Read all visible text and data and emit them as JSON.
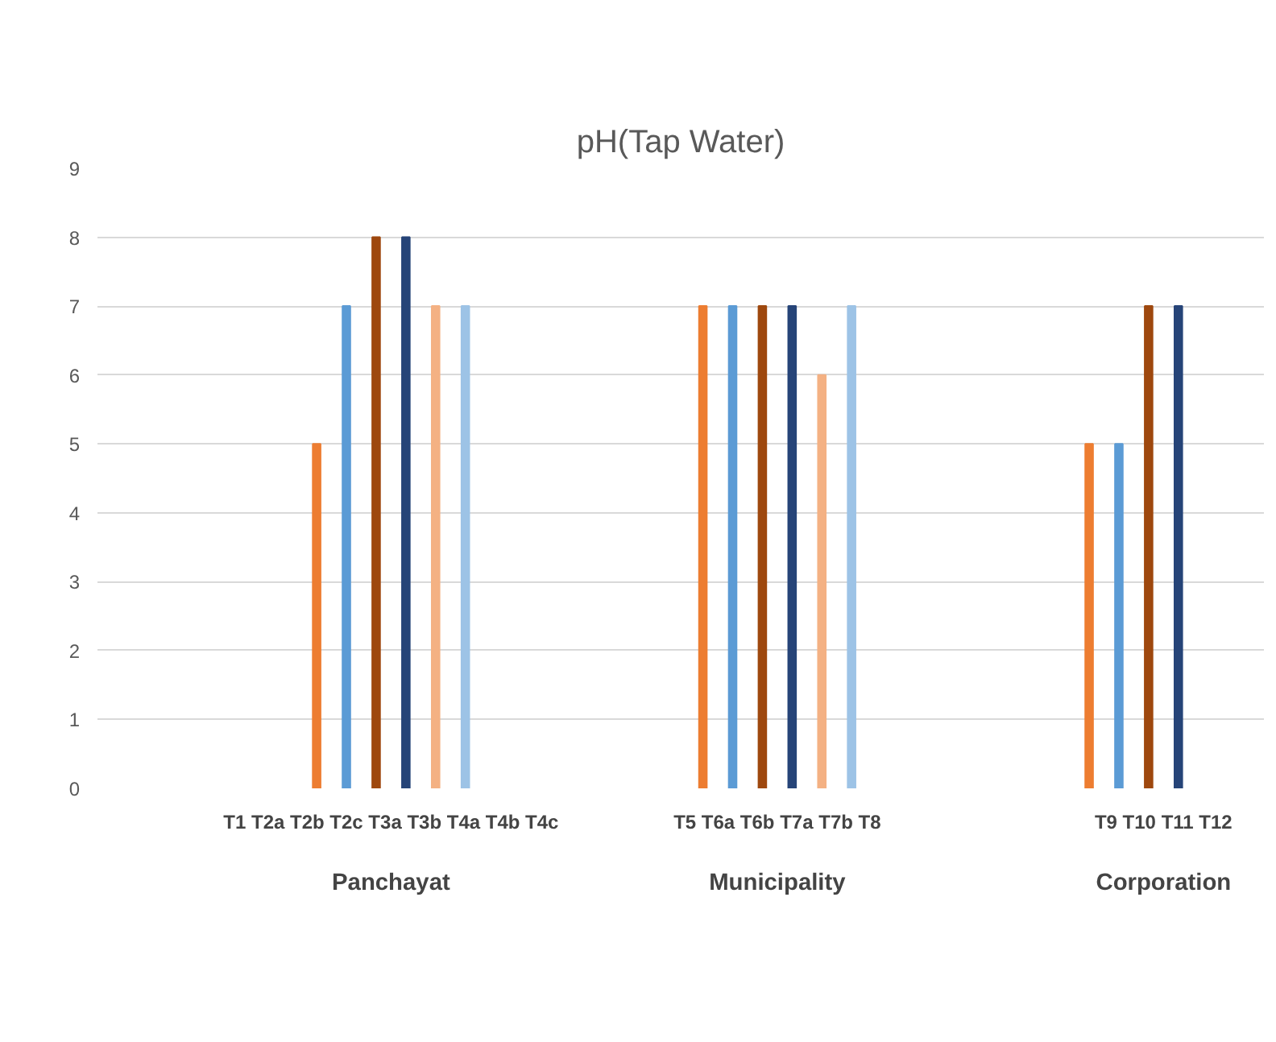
{
  "chart_data": {
    "type": "bar",
    "title": "pH(Tap Water)",
    "categories": [
      "Panchayat",
      "Municipality",
      "Corporation"
    ],
    "series": [
      {
        "color": "#ed7d31",
        "values": [
          5,
          7,
          5
        ]
      },
      {
        "color": "#5b9bd5",
        "values": [
          7,
          7,
          5
        ]
      },
      {
        "color": "#9e480e",
        "values": [
          8,
          7,
          7
        ]
      },
      {
        "color": "#264478",
        "values": [
          8,
          7,
          7
        ]
      },
      {
        "color": "#f4b183",
        "values": [
          7,
          6,
          null
        ]
      },
      {
        "color": "#9dc3e6",
        "values": [
          7,
          7,
          null
        ]
      }
    ],
    "ylim": [
      0,
      9
    ],
    "yticks": [
      0,
      1,
      2,
      3,
      4,
      5,
      6,
      7,
      8,
      9
    ],
    "grid": "y",
    "annotations": [
      "T1 T2a T2b T2c T3a T3b T4a T4b T4c",
      "T5 T6a T6b T7a T7b T8",
      "T9 T10 T11 T12"
    ]
  }
}
